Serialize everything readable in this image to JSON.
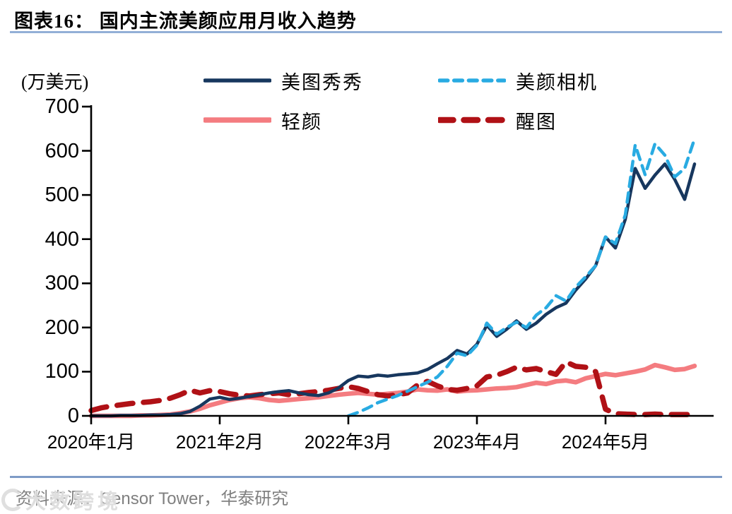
{
  "page": {
    "title": "图表16： 国内主流美颜应用月收入趋势",
    "source_text": "资料来源：Sensor Tower，华泰研究",
    "watermark": "大数跨境",
    "colors": {
      "title_rule": "#93AFD7",
      "bottom_rule": "#7E9BC6",
      "source_gray": "#808080",
      "axis": "#000000"
    }
  },
  "chart_data": {
    "type": "line",
    "figure_label": "图表16",
    "title": "国内主流美颜应用月收入趋势",
    "unit_label": "(万美元)",
    "x_start": "2020-01",
    "x_frequency": "monthly",
    "x_month_count": 62,
    "x_tick_labels": [
      "2020年1月",
      "2021年2月",
      "2022年3月",
      "2023年4月",
      "2024年5月"
    ],
    "x_tick_month_indices": [
      0,
      13,
      26,
      39,
      52
    ],
    "ylim": [
      0,
      700
    ],
    "y_ticks": [
      0,
      100,
      200,
      300,
      400,
      500,
      600,
      700
    ],
    "grid": false,
    "legend_position": "top",
    "series": [
      {
        "name": "美图秀秀",
        "color": "#17375E",
        "line_style": "solid",
        "stroke_width": 4.5,
        "values": [
          0,
          0,
          0,
          1,
          1,
          1,
          2,
          2,
          3,
          5,
          10,
          22,
          38,
          42,
          37,
          40,
          44,
          48,
          52,
          55,
          57,
          52,
          48,
          46,
          52,
          63,
          80,
          90,
          88,
          92,
          90,
          93,
          95,
          97,
          105,
          118,
          130,
          148,
          140,
          162,
          205,
          180,
          196,
          215,
          196,
          210,
          230,
          245,
          255,
          285,
          310,
          340,
          405,
          380,
          445,
          560,
          515,
          545,
          570,
          535,
          490,
          570
        ]
      },
      {
        "name": "美颜相机",
        "color": "#29ABE2",
        "line_style": "dashed",
        "stroke_width": 4.5,
        "values": [
          null,
          null,
          null,
          null,
          null,
          null,
          null,
          null,
          null,
          null,
          null,
          null,
          null,
          null,
          null,
          null,
          null,
          null,
          null,
          null,
          null,
          null,
          null,
          null,
          null,
          null,
          0,
          8,
          18,
          30,
          38,
          46,
          56,
          66,
          76,
          88,
          112,
          142,
          136,
          160,
          210,
          185,
          200,
          212,
          200,
          228,
          245,
          272,
          260,
          292,
          315,
          340,
          405,
          390,
          455,
          613,
          546,
          616,
          590,
          541,
          560,
          627
        ]
      },
      {
        "name": "轻颜",
        "color": "#F47C80",
        "line_style": "solid",
        "stroke_width": 6.5,
        "values": [
          0,
          0,
          0,
          0,
          0,
          1,
          1,
          2,
          3,
          6,
          10,
          16,
          24,
          30,
          36,
          40,
          42,
          40,
          36,
          34,
          36,
          38,
          40,
          42,
          45,
          48,
          50,
          52,
          50,
          48,
          50,
          52,
          55,
          60,
          58,
          57,
          60,
          55,
          57,
          58,
          60,
          62,
          63,
          65,
          70,
          75,
          72,
          78,
          80,
          76,
          85,
          90,
          95,
          92,
          96,
          100,
          105,
          115,
          110,
          104,
          106,
          113
        ]
      },
      {
        "name": "醒图",
        "color": "#B01116",
        "line_style": "dashed",
        "stroke_width": 7.5,
        "values": [
          12,
          18,
          22,
          25,
          28,
          30,
          32,
          35,
          40,
          48,
          58,
          52,
          57,
          55,
          50,
          47,
          45,
          48,
          50,
          52,
          48,
          50,
          53,
          55,
          58,
          62,
          66,
          62,
          55,
          48,
          45,
          48,
          52,
          70,
          78,
          68,
          60,
          58,
          62,
          68,
          88,
          92,
          100,
          110,
          104,
          107,
          100,
          94,
          122,
          112,
          110,
          100,
          15,
          5,
          4,
          3,
          3,
          4,
          3,
          3,
          3,
          3
        ]
      }
    ]
  }
}
